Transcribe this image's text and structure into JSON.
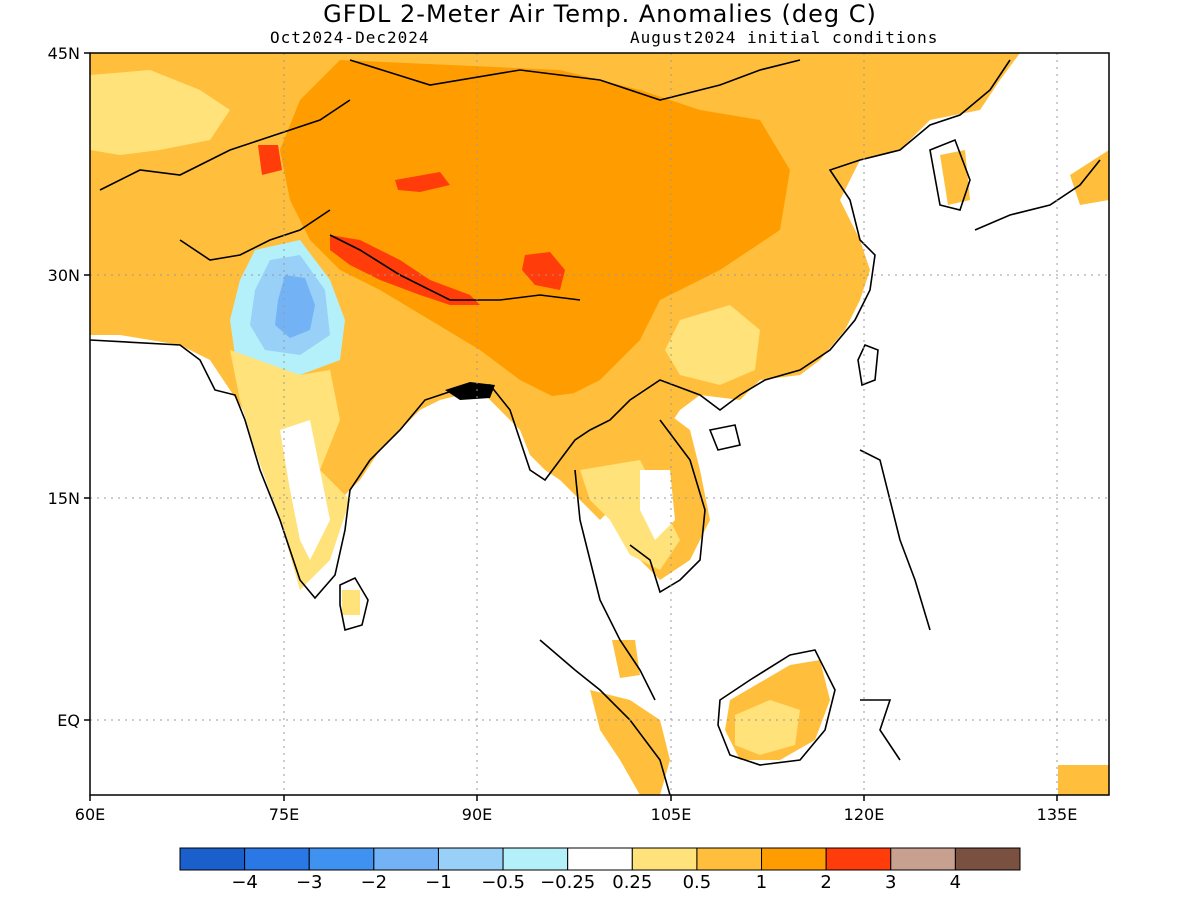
{
  "header": {
    "title": "GFDL 2-Meter Air Temp. Anomalies (deg C)",
    "period": "Oct2024-Dec2024",
    "init": "August2024 initial conditions"
  },
  "axes": {
    "lat_labels": [
      "45N",
      "30N",
      "15N",
      "EQ"
    ],
    "lon_labels": [
      "60E",
      "75E",
      "90E",
      "105E",
      "120E",
      "135E"
    ],
    "lat_values": [
      45,
      30,
      15,
      0
    ],
    "lon_values": [
      60,
      75,
      90,
      105,
      120,
      135
    ],
    "lat_range": [
      -5,
      45
    ],
    "lon_range": [
      60,
      139
    ],
    "grid": "dotted"
  },
  "colorbar": {
    "colors": [
      "#1a5fcc",
      "#2a78e6",
      "#3f92ef",
      "#72b2f5",
      "#98d0f8",
      "#b4f0fa",
      "#ffffff",
      "#ffe27a",
      "#ffbf3c",
      "#ff9d00",
      "#ff3c0a",
      "#c8a090",
      "#7a5040"
    ],
    "labels": [
      "−4",
      "−3",
      "−2",
      "−1",
      "−0.5",
      "−0.25",
      "0.25",
      "0.5",
      "1",
      "2",
      "3",
      "4"
    ]
  },
  "legend_colors": {
    "cool_light": "#b4f0fa",
    "cool_mid": "#98d0f8",
    "cool_dark": "#72b2f5",
    "warm_light": "#ffe27a",
    "warm_mid": "#ffbf3c",
    "warm_strong": "#ff9d00",
    "warm_hot": "#ff3c0a",
    "land_outline": "#000000"
  }
}
